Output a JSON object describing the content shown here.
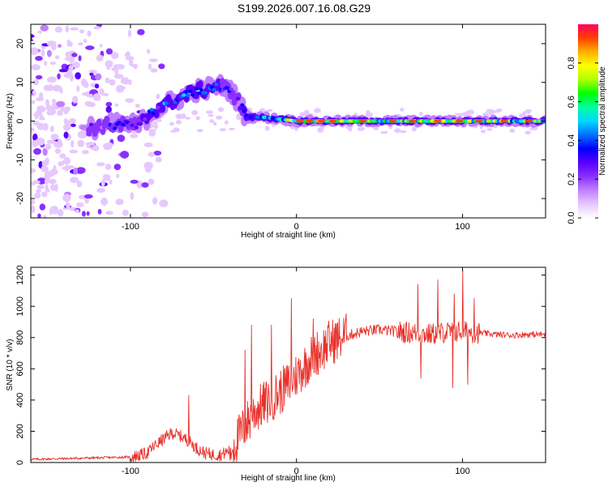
{
  "title": "S199.2026.007.16.08.G29",
  "colors": {
    "snr_line": "#e8302a",
    "axis": "#000000",
    "cmap": [
      "#ffffff",
      "#e6c8ff",
      "#c080ff",
      "#8a30ff",
      "#5a00ff",
      "#0000ff",
      "#0070ff",
      "#00d8ff",
      "#00ffa0",
      "#00ff00",
      "#b0ff00",
      "#ffff00",
      "#ffb000",
      "#ff4000",
      "#ff0060"
    ]
  },
  "chart_data": [
    {
      "type": "heatmap",
      "title": "S199.2026.007.16.08.G29",
      "xlabel": "Height of straight line (km)",
      "ylabel": "Frequency (Hz)",
      "xlim": [
        -160,
        150
      ],
      "ylim": [
        -25,
        25
      ],
      "xticks": [
        -100,
        0,
        100
      ],
      "yticks": [
        -20,
        -10,
        0,
        10,
        20
      ],
      "xtick_labels": [
        "-100",
        "0",
        "100"
      ],
      "ytick_labels": [
        "-20",
        "-10",
        "0",
        "10",
        "20"
      ],
      "colorbar": {
        "label": "Normalized spectral amplitude",
        "range": [
          0,
          1
        ],
        "ticks": [
          0.0,
          0.2,
          0.4,
          0.6,
          0.8
        ],
        "tick_labels": [
          "0.0",
          "0.2",
          "0.4",
          "0.6",
          "0.8"
        ]
      },
      "ridge": {
        "x": [
          -125,
          -115,
          -105,
          -95,
          -90,
          -85,
          -80,
          -75,
          -70,
          -65,
          -60,
          -55,
          -50,
          -45,
          -40,
          -35,
          -30,
          -20,
          -10,
          0,
          20,
          40,
          60,
          80,
          100,
          120,
          150
        ],
        "freq": [
          -2,
          -1,
          -1,
          -1,
          1,
          3,
          4,
          5,
          6,
          7,
          8,
          8,
          9,
          9,
          8,
          5,
          1,
          1,
          0.5,
          0,
          0,
          0,
          0,
          0,
          0,
          0,
          0
        ],
        "amplitude": [
          0.3,
          0.35,
          0.35,
          0.4,
          0.45,
          0.45,
          0.5,
          0.5,
          0.45,
          0.5,
          0.55,
          0.45,
          0.45,
          0.4,
          0.35,
          0.35,
          0.45,
          0.55,
          0.65,
          0.85,
          0.9,
          0.75,
          0.8,
          0.8,
          0.85,
          0.8,
          0.7
        ]
      },
      "noise_region_x": [
        -160,
        -90
      ]
    },
    {
      "type": "line",
      "xlabel": "Height of straight line (km)",
      "ylabel": "SNR (10 * v/v)",
      "xlim": [
        -160,
        150
      ],
      "ylim": [
        0,
        1250
      ],
      "xticks": [
        -100,
        0,
        100
      ],
      "yticks": [
        0,
        200,
        400,
        600,
        800,
        1000,
        1200
      ],
      "xtick_labels": [
        "-100",
        "0",
        "100"
      ],
      "ytick_labels": [
        "0",
        "200",
        "400",
        "600",
        "800",
        "1000",
        "1200"
      ],
      "series": [
        {
          "name": "SNR",
          "x": [
            -160,
            -140,
            -120,
            -100,
            -95,
            -90,
            -85,
            -80,
            -75,
            -70,
            -65,
            -60,
            -55,
            -50,
            -45,
            -40,
            -35,
            -30,
            -25,
            -20,
            -15,
            -10,
            -5,
            0,
            5,
            10,
            15,
            20,
            30,
            40,
            50,
            60,
            70,
            80,
            90,
            100,
            110,
            120,
            130,
            140,
            150
          ],
          "y": [
            20,
            25,
            30,
            35,
            45,
            60,
            110,
            150,
            190,
            170,
            140,
            90,
            60,
            50,
            50,
            80,
            160,
            250,
            330,
            370,
            410,
            450,
            500,
            560,
            620,
            690,
            720,
            770,
            810,
            840,
            850,
            840,
            830,
            820,
            835,
            840,
            830,
            820,
            815,
            820,
            820
          ]
        }
      ],
      "spikes": [
        {
          "x": -65,
          "y": 430
        },
        {
          "x": -31,
          "y": 720
        },
        {
          "x": -27,
          "y": 880
        },
        {
          "x": -15,
          "y": 880
        },
        {
          "x": -3,
          "y": 1050
        },
        {
          "x": 10,
          "y": 920
        },
        {
          "x": 73,
          "y": 1140
        },
        {
          "x": 75,
          "y": 540
        },
        {
          "x": 85,
          "y": 1170
        },
        {
          "x": 95,
          "y": 1080
        },
        {
          "x": 94,
          "y": 480
        },
        {
          "x": 100,
          "y": 1230
        },
        {
          "x": 103,
          "y": 500
        },
        {
          "x": 107,
          "y": 1050
        }
      ]
    }
  ]
}
